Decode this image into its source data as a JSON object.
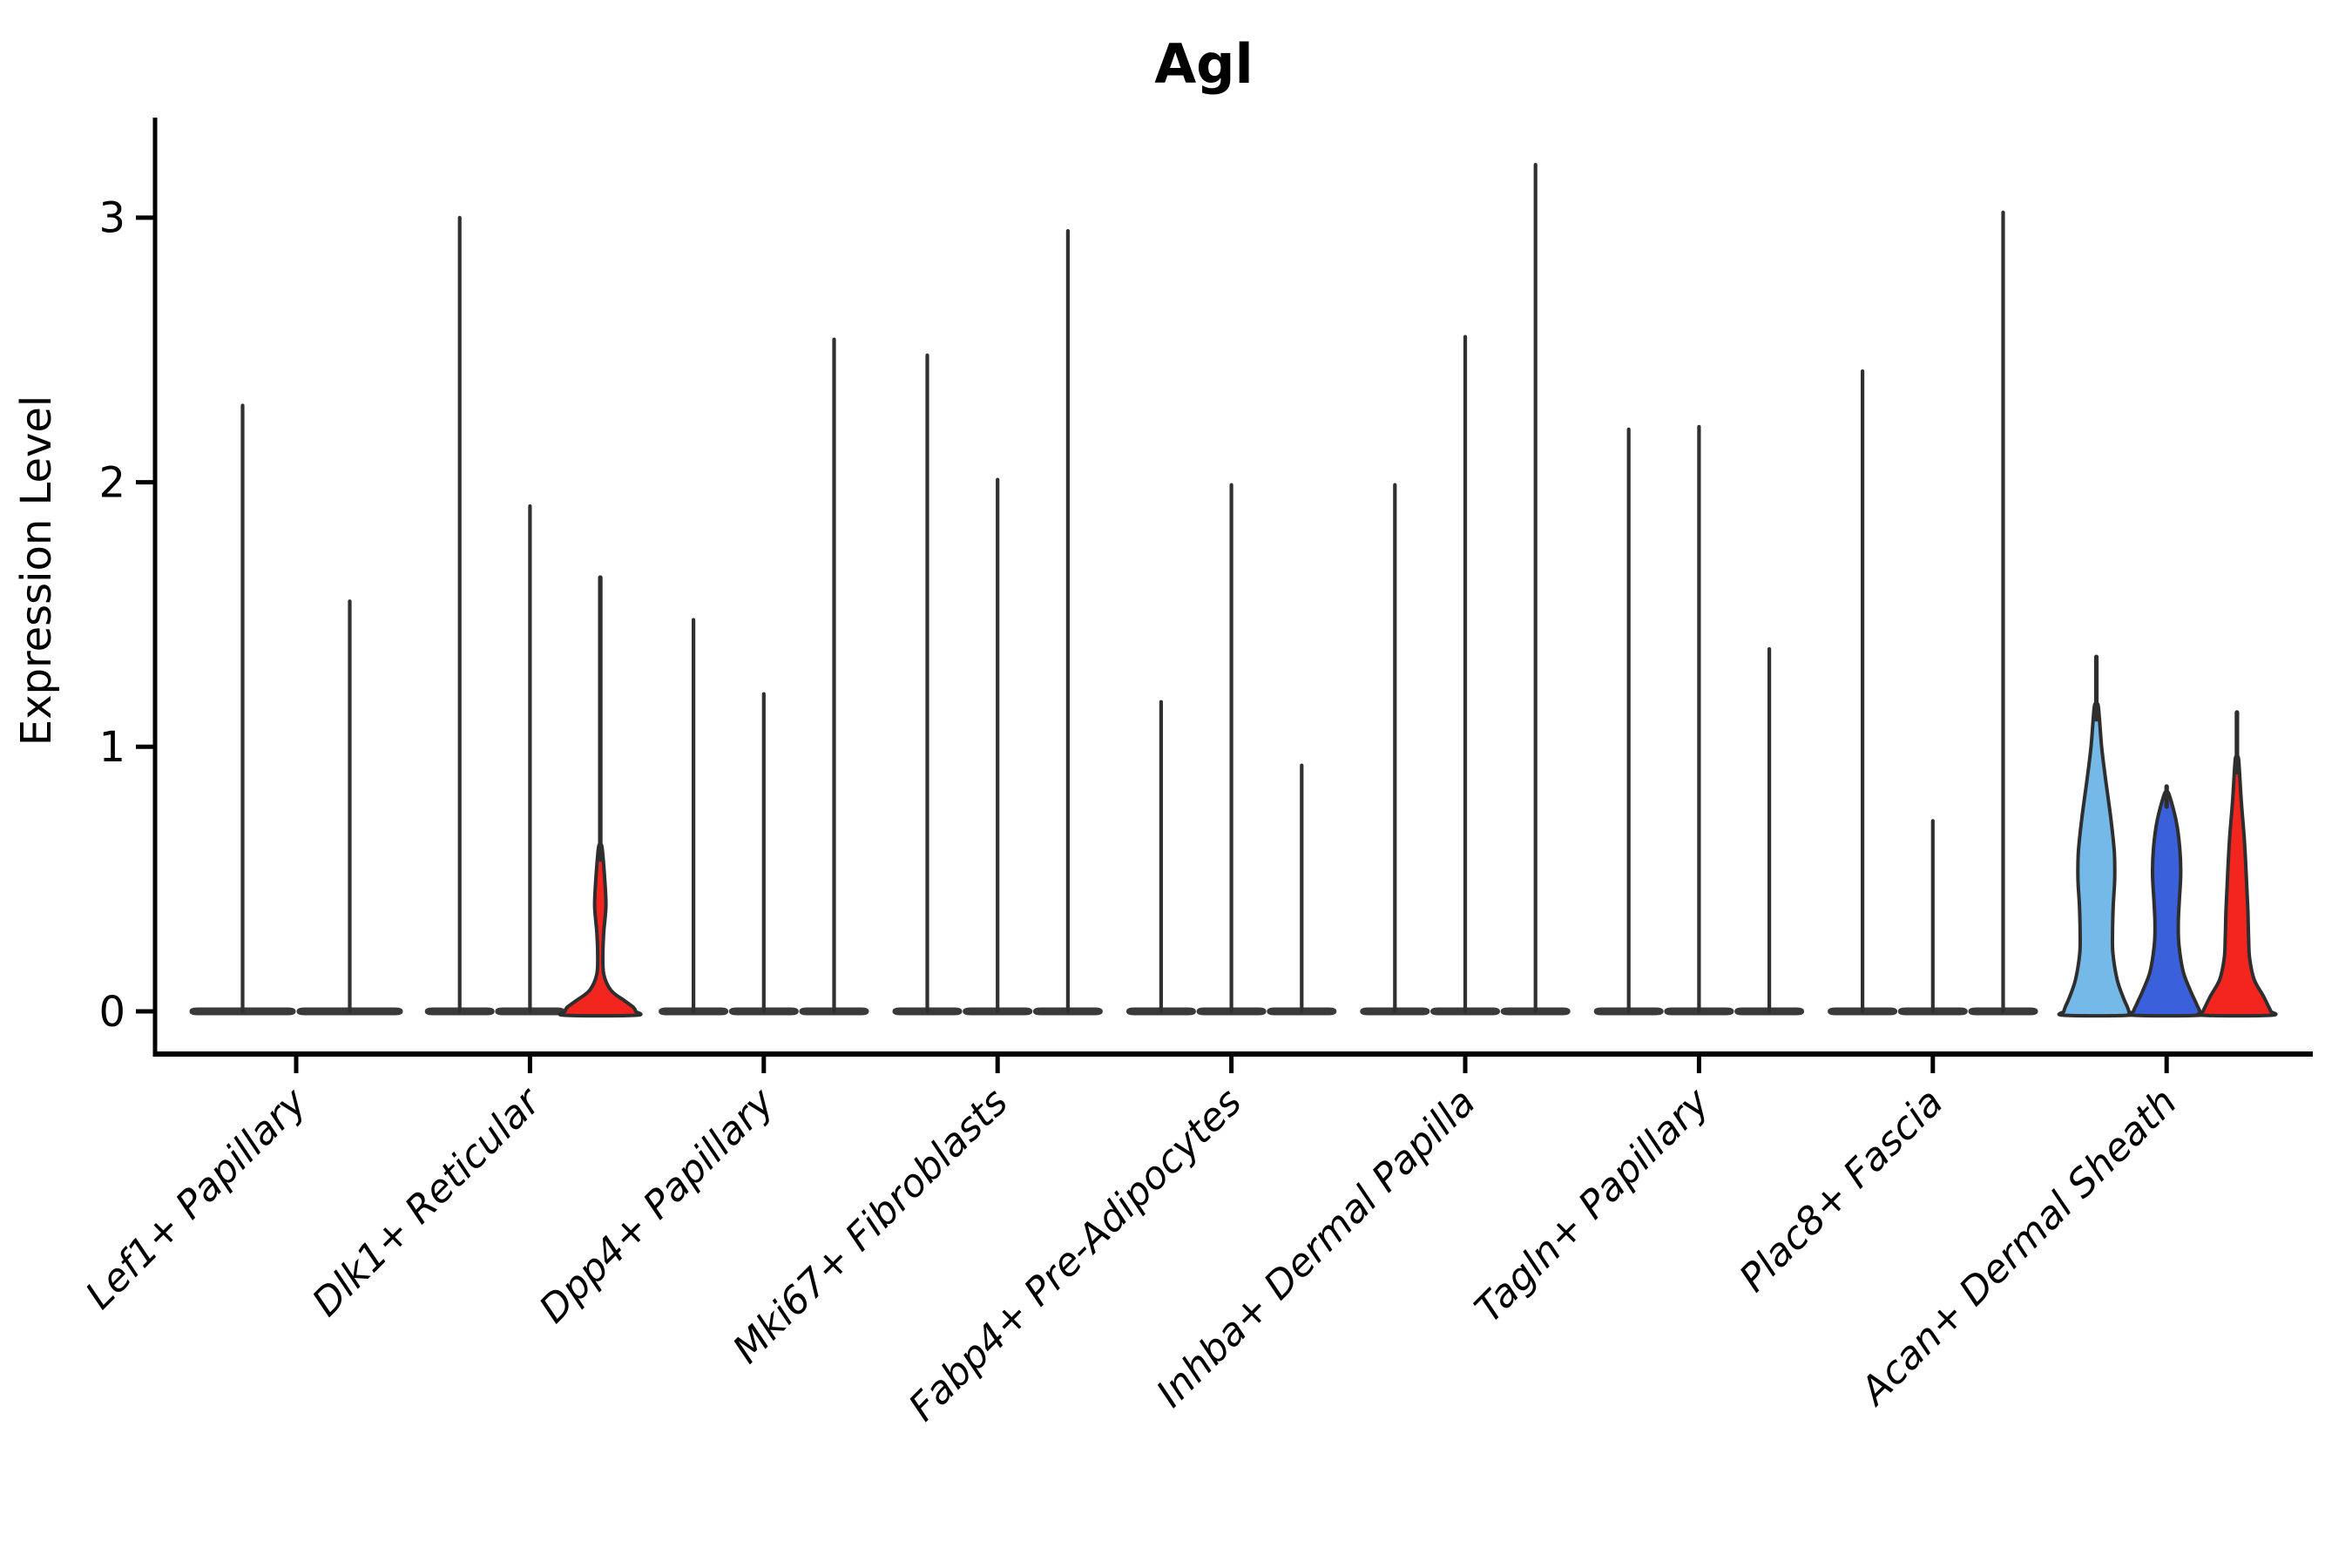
{
  "chart_data": {
    "type": "violin",
    "title": "Agl",
    "ylabel": "Expression Level",
    "yticks": [
      0,
      1,
      2,
      3
    ],
    "ylim": [
      -0.16,
      3.38
    ],
    "grid": false,
    "legend": "none",
    "categories": [
      "Lef1+ Papillary",
      "Dlk1+ Reticular",
      "Dpp4+ Papillary",
      "Mki67+ Fibroblasts",
      "Fabp4+ Pre-Adipocytes",
      "Inhba+ Dermal Papilla",
      "Tagln+ Papillary",
      "Plac8+ Fascia",
      "Acan+ Dermal Sheath"
    ],
    "sample_colors": [
      "#74B9E8",
      "#3B60DC",
      "#F3261F"
    ],
    "outline_color": "#2E2E2E",
    "base_bar_color": "#3A3A3A",
    "groups": [
      {
        "category": "Lef1+ Papillary",
        "violins": [
          {
            "sample": 0,
            "max": 2.29,
            "shape": "spike"
          },
          {
            "sample": 1,
            "max": 1.55,
            "shape": "spike"
          }
        ]
      },
      {
        "category": "Dlk1+ Reticular",
        "violins": [
          {
            "sample": 0,
            "max": 3.0,
            "shape": "spike"
          },
          {
            "sample": 1,
            "max": 1.91,
            "shape": "spike"
          },
          {
            "sample": 2,
            "max": 1.64,
            "shape": "filled",
            "profile": [
              [
                0.62,
                0.05
              ],
              [
                0.51,
                0.12
              ],
              [
                0.4,
                0.16
              ],
              [
                0.3,
                0.1
              ],
              [
                0.22,
                0.074
              ],
              [
                0.14,
                0.1
              ],
              [
                0.08,
                0.3
              ],
              [
                0.04,
                0.69
              ],
              [
                0.015,
                0.94
              ],
              [
                0.0,
                1.0
              ]
            ]
          }
        ]
      },
      {
        "category": "Dpp4+ Papillary",
        "violins": [
          {
            "sample": 0,
            "max": 1.48,
            "shape": "spike"
          },
          {
            "sample": 1,
            "max": 1.2,
            "shape": "spike"
          },
          {
            "sample": 2,
            "max": 2.54,
            "shape": "spike"
          }
        ]
      },
      {
        "category": "Mki67+ Fibroblasts",
        "violins": [
          {
            "sample": 0,
            "max": 2.48,
            "shape": "spike"
          },
          {
            "sample": 1,
            "max": 2.01,
            "shape": "spike"
          },
          {
            "sample": 2,
            "max": 2.95,
            "shape": "spike"
          }
        ]
      },
      {
        "category": "Fabp4+ Pre-Adipocytes",
        "violins": [
          {
            "sample": 0,
            "max": 1.17,
            "shape": "spike"
          },
          {
            "sample": 1,
            "max": 1.99,
            "shape": "spike"
          },
          {
            "sample": 2,
            "max": 0.93,
            "shape": "spike"
          }
        ]
      },
      {
        "category": "Inhba+ Dermal Papilla",
        "violins": [
          {
            "sample": 0,
            "max": 1.99,
            "shape": "spike"
          },
          {
            "sample": 1,
            "max": 2.55,
            "shape": "spike"
          },
          {
            "sample": 2,
            "max": 3.2,
            "shape": "spike"
          }
        ]
      },
      {
        "category": "Tagln+ Papillary",
        "violins": [
          {
            "sample": 0,
            "max": 2.2,
            "shape": "spike"
          },
          {
            "sample": 1,
            "max": 2.21,
            "shape": "spike"
          },
          {
            "sample": 2,
            "max": 1.37,
            "shape": "spike"
          }
        ]
      },
      {
        "category": "Plac8+ Fascia",
        "violins": [
          {
            "sample": 0,
            "max": 2.42,
            "shape": "spike"
          },
          {
            "sample": 1,
            "max": 0.72,
            "shape": "spike"
          },
          {
            "sample": 2,
            "max": 3.02,
            "shape": "spike"
          }
        ]
      },
      {
        "category": "Acan+ Dermal Sheath",
        "violins": [
          {
            "sample": 0,
            "max": 1.34,
            "shape": "filled",
            "profile": [
              [
                1.15,
                0.06
              ],
              [
                1.0,
                0.15
              ],
              [
                0.87,
                0.27
              ],
              [
                0.72,
                0.42
              ],
              [
                0.6,
                0.51
              ],
              [
                0.5,
                0.52
              ],
              [
                0.4,
                0.48
              ],
              [
                0.3,
                0.46
              ],
              [
                0.22,
                0.47
              ],
              [
                0.12,
                0.59
              ],
              [
                0.05,
                0.77
              ],
              [
                0.02,
                0.87
              ],
              [
                0.0,
                0.92
              ]
            ]
          },
          {
            "sample": 1,
            "max": 0.85,
            "shape": "filled",
            "profile": [
              [
                0.82,
                0.07
              ],
              [
                0.72,
                0.27
              ],
              [
                0.62,
                0.37
              ],
              [
                0.52,
                0.4
              ],
              [
                0.42,
                0.36
              ],
              [
                0.33,
                0.33
              ],
              [
                0.25,
                0.35
              ],
              [
                0.15,
                0.47
              ],
              [
                0.08,
                0.67
              ],
              [
                0.03,
                0.84
              ],
              [
                0.0,
                0.94
              ]
            ]
          },
          {
            "sample": 2,
            "max": 1.13,
            "shape": "filled",
            "profile": [
              [
                0.95,
                0.05
              ],
              [
                0.8,
                0.12
              ],
              [
                0.65,
                0.21
              ],
              [
                0.5,
                0.27
              ],
              [
                0.38,
                0.31
              ],
              [
                0.28,
                0.33
              ],
              [
                0.2,
                0.36
              ],
              [
                0.12,
                0.49
              ],
              [
                0.06,
                0.74
              ],
              [
                0.02,
                0.89
              ],
              [
                0.0,
                0.96
              ]
            ]
          }
        ]
      }
    ]
  }
}
